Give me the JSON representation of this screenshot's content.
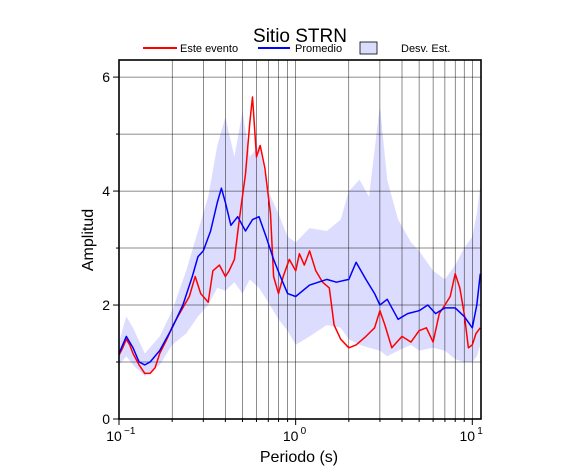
{
  "chart_data": {
    "type": "line",
    "title": "Sitio STRN",
    "xlabel": "Periodo (s)",
    "ylabel": "Amplitud",
    "x_scale": "log",
    "xlim": [
      0.1,
      11.2
    ],
    "ylim": [
      0,
      6.3
    ],
    "x_ticks": [
      {
        "value": 0.1,
        "base": "10",
        "exp": "−1"
      },
      {
        "value": 1,
        "base": "10",
        "exp": "0"
      },
      {
        "value": 10,
        "base": "10",
        "exp": "1"
      }
    ],
    "y_ticks": [
      0,
      2,
      4,
      6
    ],
    "y_gridlines": [
      1,
      2,
      3,
      4,
      5,
      6
    ],
    "grid": true,
    "legend_position": "top",
    "legend": [
      "Este evento",
      "Promedio",
      "Desv. Est."
    ],
    "colors": {
      "este_evento": "#ff0000",
      "promedio": "#0000ff",
      "desv_fill": "#dcdcff"
    },
    "series": [
      {
        "name": "Este evento",
        "points": [
          [
            0.1,
            1.12
          ],
          [
            0.105,
            1.25
          ],
          [
            0.11,
            1.4
          ],
          [
            0.115,
            1.3
          ],
          [
            0.12,
            1.15
          ],
          [
            0.13,
            0.95
          ],
          [
            0.14,
            0.8
          ],
          [
            0.15,
            0.8
          ],
          [
            0.16,
            0.9
          ],
          [
            0.17,
            1.15
          ],
          [
            0.19,
            1.45
          ],
          [
            0.2,
            1.62
          ],
          [
            0.22,
            1.85
          ],
          [
            0.25,
            2.15
          ],
          [
            0.27,
            2.5
          ],
          [
            0.29,
            2.2
          ],
          [
            0.3,
            2.15
          ],
          [
            0.32,
            2.05
          ],
          [
            0.34,
            2.6
          ],
          [
            0.37,
            2.7
          ],
          [
            0.4,
            2.5
          ],
          [
            0.42,
            2.6
          ],
          [
            0.45,
            2.8
          ],
          [
            0.48,
            3.5
          ],
          [
            0.52,
            4.3
          ],
          [
            0.55,
            5.2
          ],
          [
            0.57,
            5.65
          ],
          [
            0.6,
            4.6
          ],
          [
            0.63,
            4.8
          ],
          [
            0.67,
            4.4
          ],
          [
            0.72,
            3.6
          ],
          [
            0.75,
            2.5
          ],
          [
            0.8,
            2.2
          ],
          [
            0.85,
            2.5
          ],
          [
            0.92,
            2.8
          ],
          [
            1.0,
            2.6
          ],
          [
            1.05,
            2.9
          ],
          [
            1.12,
            2.7
          ],
          [
            1.2,
            2.95
          ],
          [
            1.3,
            2.6
          ],
          [
            1.42,
            2.4
          ],
          [
            1.55,
            2.3
          ],
          [
            1.65,
            1.65
          ],
          [
            1.8,
            1.4
          ],
          [
            2.0,
            1.25
          ],
          [
            2.2,
            1.3
          ],
          [
            2.5,
            1.45
          ],
          [
            2.8,
            1.6
          ],
          [
            3.0,
            1.9
          ],
          [
            3.2,
            1.65
          ],
          [
            3.5,
            1.25
          ],
          [
            4.0,
            1.45
          ],
          [
            4.5,
            1.35
          ],
          [
            5.0,
            1.55
          ],
          [
            5.5,
            1.6
          ],
          [
            6.0,
            1.35
          ],
          [
            6.5,
            1.85
          ],
          [
            7.0,
            2.0
          ],
          [
            7.5,
            2.15
          ],
          [
            8.0,
            2.55
          ],
          [
            8.5,
            2.3
          ],
          [
            9.0,
            1.85
          ],
          [
            9.5,
            1.25
          ],
          [
            10.0,
            1.3
          ],
          [
            10.5,
            1.5
          ],
          [
            11.1,
            1.6
          ]
        ]
      },
      {
        "name": "Promedio",
        "points": [
          [
            0.1,
            1.15
          ],
          [
            0.11,
            1.45
          ],
          [
            0.12,
            1.25
          ],
          [
            0.13,
            1.0
          ],
          [
            0.14,
            0.95
          ],
          [
            0.15,
            1.0
          ],
          [
            0.17,
            1.2
          ],
          [
            0.2,
            1.6
          ],
          [
            0.23,
            2.0
          ],
          [
            0.26,
            2.5
          ],
          [
            0.28,
            2.85
          ],
          [
            0.3,
            2.95
          ],
          [
            0.33,
            3.3
          ],
          [
            0.36,
            3.8
          ],
          [
            0.38,
            4.05
          ],
          [
            0.4,
            3.8
          ],
          [
            0.43,
            3.4
          ],
          [
            0.47,
            3.55
          ],
          [
            0.52,
            3.3
          ],
          [
            0.57,
            3.5
          ],
          [
            0.62,
            3.55
          ],
          [
            0.68,
            3.2
          ],
          [
            0.75,
            2.8
          ],
          [
            0.82,
            2.5
          ],
          [
            0.9,
            2.2
          ],
          [
            1.0,
            2.15
          ],
          [
            1.2,
            2.35
          ],
          [
            1.5,
            2.45
          ],
          [
            1.7,
            2.4
          ],
          [
            2.0,
            2.45
          ],
          [
            2.2,
            2.75
          ],
          [
            2.5,
            2.45
          ],
          [
            2.8,
            2.2
          ],
          [
            3.0,
            2.0
          ],
          [
            3.3,
            2.1
          ],
          [
            3.8,
            1.75
          ],
          [
            4.3,
            1.85
          ],
          [
            5.0,
            1.9
          ],
          [
            5.6,
            2.0
          ],
          [
            6.2,
            1.85
          ],
          [
            7.0,
            1.95
          ],
          [
            8.0,
            1.95
          ],
          [
            9.0,
            1.8
          ],
          [
            10.0,
            1.6
          ],
          [
            10.6,
            2.0
          ],
          [
            11.1,
            2.55
          ]
        ]
      }
    ],
    "band": {
      "name": "Desv. Est.",
      "upper": [
        [
          0.1,
          1.35
        ],
        [
          0.11,
          1.8
        ],
        [
          0.12,
          1.6
        ],
        [
          0.14,
          1.15
        ],
        [
          0.17,
          1.45
        ],
        [
          0.2,
          1.9
        ],
        [
          0.24,
          2.6
        ],
        [
          0.28,
          3.3
        ],
        [
          0.32,
          3.9
        ],
        [
          0.36,
          4.8
        ],
        [
          0.4,
          5.3
        ],
        [
          0.45,
          4.6
        ],
        [
          0.5,
          5.4
        ],
        [
          0.55,
          4.6
        ],
        [
          0.62,
          4.8
        ],
        [
          0.7,
          4.0
        ],
        [
          0.8,
          3.6
        ],
        [
          0.9,
          3.2
        ],
        [
          1.0,
          3.1
        ],
        [
          1.2,
          3.35
        ],
        [
          1.5,
          3.3
        ],
        [
          1.8,
          3.5
        ],
        [
          2.0,
          4.0
        ],
        [
          2.3,
          4.2
        ],
        [
          2.6,
          3.9
        ],
        [
          3.0,
          5.5
        ],
        [
          3.3,
          4.2
        ],
        [
          3.8,
          3.5
        ],
        [
          4.5,
          3.1
        ],
        [
          5.0,
          2.95
        ],
        [
          6.0,
          2.6
        ],
        [
          7.0,
          2.45
        ],
        [
          8.0,
          2.7
        ],
        [
          9.0,
          3.0
        ],
        [
          10.0,
          3.2
        ],
        [
          10.6,
          3.6
        ],
        [
          11.1,
          4.1
        ]
      ],
      "lower": [
        [
          0.1,
          0.95
        ],
        [
          0.11,
          1.1
        ],
        [
          0.12,
          0.95
        ],
        [
          0.14,
          0.75
        ],
        [
          0.17,
          0.95
        ],
        [
          0.2,
          1.3
        ],
        [
          0.24,
          1.5
        ],
        [
          0.28,
          1.8
        ],
        [
          0.32,
          2.0
        ],
        [
          0.36,
          2.3
        ],
        [
          0.4,
          2.25
        ],
        [
          0.45,
          2.4
        ],
        [
          0.5,
          2.2
        ],
        [
          0.55,
          2.45
        ],
        [
          0.62,
          2.3
        ],
        [
          0.7,
          2.05
        ],
        [
          0.8,
          1.75
        ],
        [
          0.9,
          1.55
        ],
        [
          1.0,
          1.3
        ],
        [
          1.2,
          1.45
        ],
        [
          1.5,
          1.65
        ],
        [
          1.8,
          1.6
        ],
        [
          2.0,
          1.4
        ],
        [
          2.3,
          1.3
        ],
        [
          2.6,
          1.25
        ],
        [
          3.0,
          1.2
        ],
        [
          3.3,
          1.1
        ],
        [
          3.8,
          1.2
        ],
        [
          4.5,
          1.3
        ],
        [
          5.0,
          1.2
        ],
        [
          6.0,
          1.25
        ],
        [
          7.0,
          1.2
        ],
        [
          8.0,
          1.05
        ],
        [
          9.0,
          1.0
        ],
        [
          10.0,
          1.0
        ],
        [
          10.6,
          1.1
        ],
        [
          11.1,
          1.3
        ]
      ]
    }
  }
}
